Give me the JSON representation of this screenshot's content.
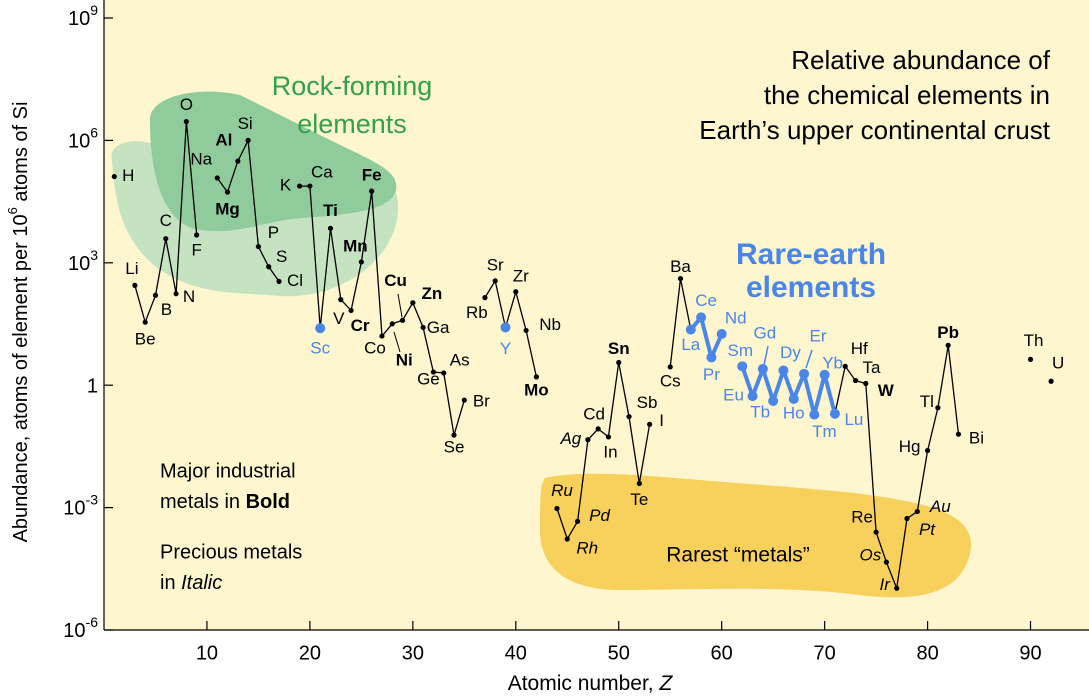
{
  "chart_data": {
    "type": "line",
    "title": [
      "Relative abundance of",
      "the chemical elements in",
      "Earth’s upper continental crust"
    ],
    "y_label": [
      "Abundance, atoms of element per 10",
      "6",
      " atoms of Si"
    ],
    "x_label": [
      "Atomic number, ",
      "Z"
    ],
    "log_y": true,
    "xlim": [
      0,
      95
    ],
    "ylim": [
      1e-06,
      1000000000
    ],
    "xticks": [
      10,
      20,
      30,
      40,
      50,
      60,
      70,
      80,
      90
    ],
    "yticks": [
      {
        "value": 1000000000,
        "label": "10",
        "exponent": "9"
      },
      {
        "value": 1000000,
        "label": "10",
        "exponent": "6"
      },
      {
        "value": 1000,
        "label": "10",
        "exponent": "3"
      },
      1,
      {
        "value": 0.001,
        "label": "10",
        "exponent": "-3"
      },
      {
        "value": 1e-06,
        "label": "10",
        "exponent": "-6"
      }
    ],
    "highlight_color": "#4a86e8",
    "x": [
      1,
      3,
      4,
      5,
      6,
      7,
      8,
      9,
      11,
      12,
      13,
      14,
      15,
      16,
      17,
      19,
      20,
      21,
      22,
      23,
      24,
      25,
      26,
      27,
      28,
      29,
      30,
      31,
      32,
      33,
      34,
      35,
      37,
      38,
      39,
      40,
      41,
      42,
      44,
      45,
      46,
      47,
      48,
      49,
      50,
      51,
      52,
      53,
      55,
      56,
      57,
      58,
      59,
      60,
      62,
      63,
      64,
      65,
      66,
      67,
      68,
      69,
      70,
      71,
      72,
      73,
      74,
      75,
      76,
      77,
      78,
      79,
      80,
      81,
      82,
      83,
      90,
      92
    ],
    "labels": [
      "H",
      "Li",
      "Be",
      "B",
      "C",
      "N",
      "O",
      "F",
      "Na",
      "Mg",
      "Al",
      "Si",
      "P",
      "S",
      "Cl",
      "K",
      "Ca",
      "Sc",
      "Ti",
      "V",
      "Cr",
      "Mn",
      "Fe",
      "Co",
      "Ni",
      "Cu",
      "Zn",
      "Ga",
      "Ge",
      "As",
      "Se",
      "Br",
      "Rb",
      "Sr",
      "Y",
      "Zr",
      "Nb",
      "Mo",
      "Ru",
      "Rh",
      "Pd",
      "Ag",
      "Cd",
      "In",
      "Sn",
      "Sb",
      "Te",
      "I",
      "Cs",
      "Ba",
      "La",
      "Ce",
      "Pr",
      "Nd",
      "Sm",
      "Eu",
      "Gd",
      "Tb",
      "Dy",
      "Ho",
      "Er",
      "Tm",
      "Yb",
      "Lu",
      "Hf",
      "Ta",
      "W",
      "Re",
      "Os",
      "Ir",
      "Pt",
      "Au",
      "Hg",
      "Tl",
      "Pb",
      "Bi",
      "Th",
      "U"
    ],
    "label_styles": [
      "normal",
      "normal",
      "normal",
      "normal",
      "normal",
      "normal",
      "normal",
      "normal",
      "normal",
      "bold",
      "bold",
      "normal",
      "normal",
      "normal",
      "normal",
      "normal",
      "normal",
      "highlight",
      "bold",
      "normal",
      "bold",
      "bold",
      "bold",
      "normal",
      "bold",
      "bold",
      "bold",
      "normal",
      "small",
      "normal",
      "small",
      "normal",
      "normal",
      "normal",
      "highlight",
      "normal",
      "normal",
      "bold",
      "italic",
      "italic",
      "italic",
      "italic",
      "normal",
      "normal",
      "bold",
      "normal",
      "normal",
      "normal",
      "normal",
      "normal",
      "highlight",
      "highlight",
      "highlight",
      "highlight",
      "highlight",
      "highlight",
      "highlight",
      "highlight",
      "highlight",
      "highlight",
      "highlight",
      "highlight",
      "highlight",
      "highlight",
      "normal",
      "normal",
      "bold",
      "normal",
      "italic",
      "italic",
      "italic",
      "italic",
      "normal",
      "normal",
      "bold",
      "normal",
      "normal",
      "normal"
    ],
    "series": [
      {
        "color": "#000000",
        "values": [
          130000,
          280,
          35,
          160,
          3900,
          175,
          2900000,
          4800,
          120000,
          54000,
          310000,
          1000000,
          2500,
          800,
          350,
          76000,
          76000,
          25,
          7000,
          125,
          68,
          1050,
          57000,
          16,
          32,
          39,
          105,
          26,
          2.1,
          2,
          0.06,
          0.43,
          140,
          360,
          26,
          195,
          22,
          1.6,
          0.00095,
          0.00017,
          0.00046,
          0.046,
          0.085,
          0.054,
          3.6,
          0.17,
          0.0039,
          0.11,
          2.8,
          410,
          23,
          46,
          4.8,
          18,
          2.9,
          0.54,
          2.5,
          0.41,
          2.3,
          0.46,
          1.9,
          0.19,
          1.8,
          0.2,
          2.9,
          1.3,
          1.1,
          0.00025,
          4.6e-05,
          1.05e-05,
          0.00054,
          0.0008,
          0.025,
          0.28,
          9.5,
          0.063,
          4.3,
          1.25
        ]
      }
    ],
    "annotations": {
      "rock_forming": [
        "Rock-forming",
        "elements"
      ],
      "rare_earth": [
        "Rare-earth",
        "elements"
      ],
      "rarest": "Rarest “metals”",
      "major": [
        "Major industrial",
        "metals in ",
        "Bold"
      ],
      "precious": [
        "Precious metals",
        "in ",
        "Italic"
      ]
    }
  }
}
